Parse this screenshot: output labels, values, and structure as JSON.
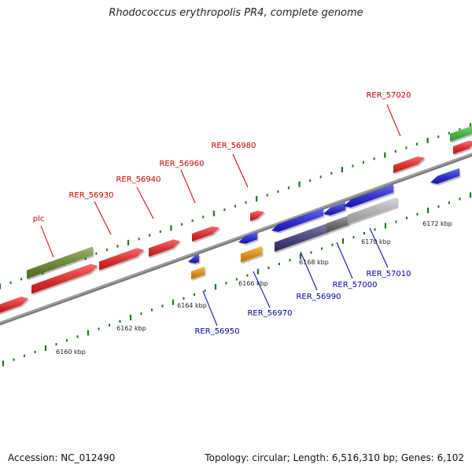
{
  "title": "Rhodococcus erythropolis PR4, complete genome",
  "accession": "Accession: NC_012490",
  "summary": "Topology: circular; Length: 6,516,310 bp; Genes: 6,102",
  "colors": {
    "forward_label": "#cc0000",
    "reverse_label": "#0000aa",
    "tick": "#1a7a1a",
    "red_gene": "#ff1a1a",
    "olive_gene": "#6b8e23",
    "blue_gene": "#1a1aee",
    "orange_gene": "#ff9900",
    "slate_gene": "#3a3580",
    "gray_gene": "#6b6b6b",
    "light_gene": "#c8c8c8",
    "green_gene": "#33cc33"
  },
  "scale_labels": [
    "6160 kbp",
    "6162 kbp",
    "6164 kbp",
    "6166 kbp",
    "6168 kbp",
    "6170 kbp",
    "6172 kbp"
  ],
  "gene_labels": {
    "forward": [
      "plc",
      "RER_56930",
      "RER_56940",
      "RER_56960",
      "RER_56980",
      "RER_57020"
    ],
    "reverse": [
      "RER_56950",
      "RER_56970",
      "RER_56990",
      "RER_57000",
      "RER_57010"
    ]
  }
}
